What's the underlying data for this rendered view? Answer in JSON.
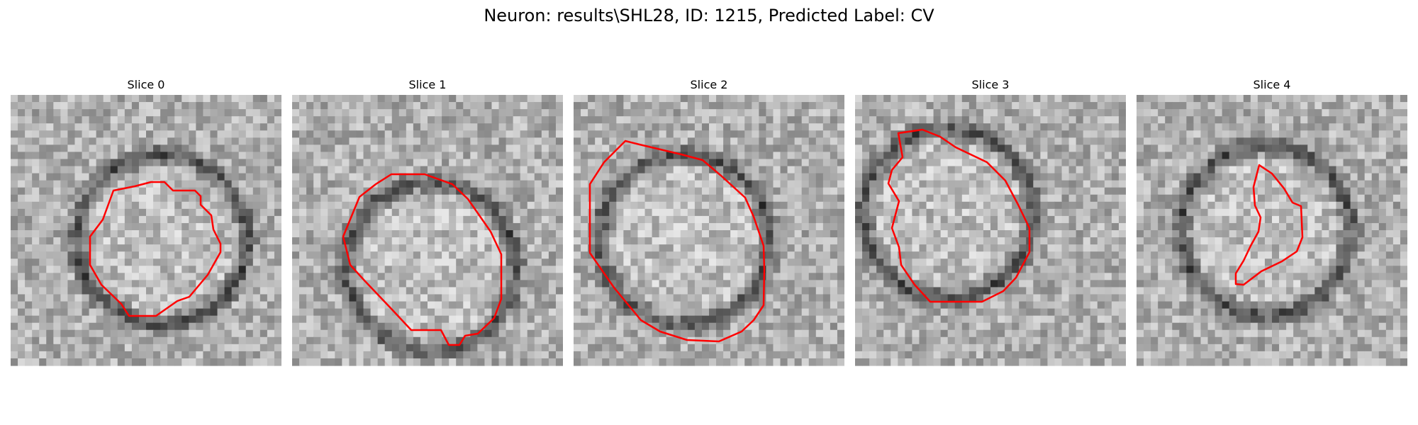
{
  "figure": {
    "title": "Neuron: results\\SHL28, ID: 1215, Predicted Label: CV"
  },
  "panels": [
    {
      "title": "Slice 0"
    },
    {
      "title": "Slice 1"
    },
    {
      "title": "Slice 2"
    },
    {
      "title": "Slice 3"
    },
    {
      "title": "Slice 4"
    }
  ],
  "style": {
    "contour_color": "#ff0000",
    "colormap": "gray"
  }
}
